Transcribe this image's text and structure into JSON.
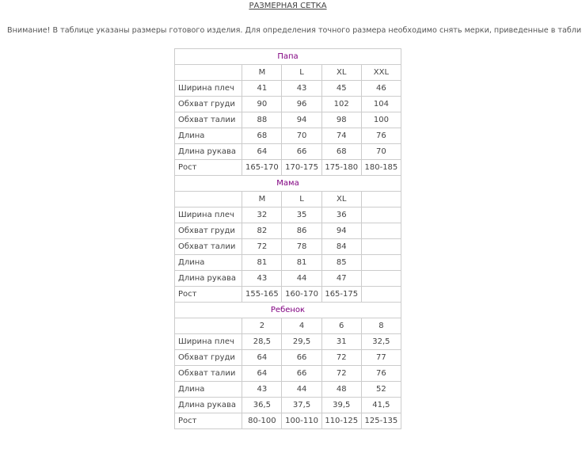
{
  "title": "РАЗМЕРНАЯ СЕТКА",
  "note": "Внимание! В таблице указаны размеры готового изделия. Для определения точного размера необходимо снять мерки, приведенные в таблице.",
  "accent_color": "#800080",
  "sections": [
    {
      "name": "Папа",
      "sizes": [
        "M",
        "L",
        "XL",
        "XXL"
      ],
      "rows": [
        {
          "label": "Ширина плеч",
          "values": [
            "41",
            "43",
            "45",
            "46"
          ]
        },
        {
          "label": "Обхват груди",
          "values": [
            "90",
            "96",
            "102",
            "104"
          ]
        },
        {
          "label": "Обхват талии",
          "values": [
            "88",
            "94",
            "98",
            "100"
          ]
        },
        {
          "label": "Длина",
          "values": [
            "68",
            "70",
            "74",
            "76"
          ]
        },
        {
          "label": "Длина рукава",
          "values": [
            "64",
            "66",
            "68",
            "70"
          ]
        },
        {
          "label": "Рост",
          "values": [
            "165-170",
            "170-175",
            "175-180",
            "180-185"
          ]
        }
      ]
    },
    {
      "name": "Мама",
      "sizes": [
        "M",
        "L",
        "XL",
        ""
      ],
      "rows": [
        {
          "label": "Ширина плеч",
          "values": [
            "32",
            "35",
            "36",
            ""
          ]
        },
        {
          "label": "Обхват груди",
          "values": [
            "82",
            "86",
            "94",
            ""
          ]
        },
        {
          "label": "Обхват талии",
          "values": [
            "72",
            "78",
            "84",
            ""
          ]
        },
        {
          "label": "Длина",
          "values": [
            "81",
            "81",
            "85",
            ""
          ]
        },
        {
          "label": "Длина рукава",
          "values": [
            "43",
            "44",
            "47",
            ""
          ]
        },
        {
          "label": "Рост",
          "values": [
            "155-165",
            "160-170",
            "165-175",
            ""
          ]
        }
      ]
    },
    {
      "name": "Ребенок",
      "sizes": [
        "2",
        "4",
        "6",
        "8"
      ],
      "rows": [
        {
          "label": "Ширина плеч",
          "values": [
            "28,5",
            "29,5",
            "31",
            "32,5"
          ]
        },
        {
          "label": "Обхват груди",
          "values": [
            "64",
            "66",
            "72",
            "77"
          ]
        },
        {
          "label": "Обхват талии",
          "values": [
            "64",
            "66",
            "72",
            "76"
          ]
        },
        {
          "label": "Длина",
          "values": [
            "43",
            "44",
            "48",
            "52"
          ]
        },
        {
          "label": "Длина рукава",
          "values": [
            "36,5",
            "37,5",
            "39,5",
            "41,5"
          ]
        },
        {
          "label": "Рост",
          "values": [
            "80-100",
            "100-110",
            "110-125",
            "125-135"
          ]
        }
      ]
    }
  ]
}
